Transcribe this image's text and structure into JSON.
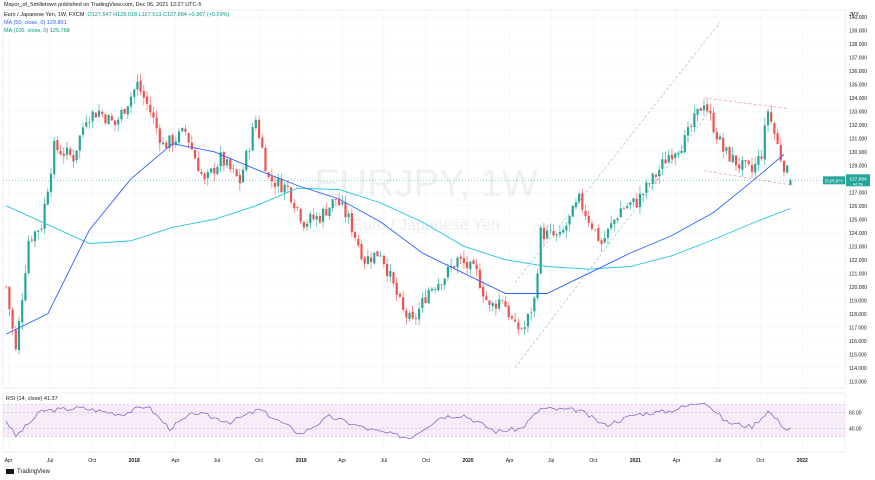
{
  "header": {
    "publish_line": "Mayor_of_Smilletown published on TradingView.com, Dec 06, 2021 12:27 UTC-5",
    "symbol_desc": "Euro / Japanese Yen, 1W, FXCM",
    "ohlc": "O127.547  H128.018  L127.513  C127.884  +0.367 (+0.29%)",
    "ma50": "MA (50, close, 0)  129.801",
    "ma100": "MA (100, close, 0)  125.768",
    "currency": "JPY"
  },
  "watermark": {
    "symbol": "EURJPY, 1W",
    "name": "Euro / Japanese Yen"
  },
  "price_label": {
    "symbol": "EURJPY",
    "value": "127.884",
    "countdown": "4d 5h"
  },
  "rsi": {
    "label": "RSI (14, close)  41.37"
  },
  "footer": {
    "brand": "TradingView"
  },
  "colors": {
    "up": "#26a69a",
    "down": "#ef5350",
    "ma50": "#2962ff",
    "ma100": "#26c6da",
    "rsi": "#7e57c2",
    "rsi_band": "#f3e5f5",
    "channel": "#9fd6c4",
    "wedge": "#f4a3a8"
  },
  "chart_data": {
    "type": "candlestick",
    "y_range": [
      112.5,
      140.5
    ],
    "y_ticks": [
      "113.000",
      "114.000",
      "115.000",
      "116.000",
      "117.000",
      "118.000",
      "119.000",
      "120.000",
      "121.000",
      "122.000",
      "123.000",
      "124.000",
      "125.000",
      "126.000",
      "127.000",
      "128.000",
      "129.000",
      "130.000",
      "131.000",
      "132.000",
      "133.000",
      "134.000",
      "135.000",
      "136.000",
      "137.000",
      "138.000",
      "139.000",
      "140.000"
    ],
    "x_labels": [
      "Apr",
      "Jul",
      "Oct",
      "2018",
      "Apr",
      "Jul",
      "Oct",
      "2019",
      "Apr",
      "Jul",
      "Oct",
      "2020",
      "Apr",
      "Jul",
      "Oct",
      "2021",
      "Apr",
      "Jul",
      "Oct",
      "2022"
    ],
    "close_path": [
      [
        "2017-03-27",
        120.0
      ],
      [
        "2017-04-17",
        115.2
      ],
      [
        "2017-05-15",
        123.5
      ],
      [
        "2017-06-12",
        124.6
      ],
      [
        "2017-07-10",
        130.3
      ],
      [
        "2017-08-21",
        129.6
      ],
      [
        "2017-09-18",
        132.6
      ],
      [
        "2017-10-16",
        133.0
      ],
      [
        "2017-11-20",
        132.0
      ],
      [
        "2018-01-08",
        135.0
      ],
      [
        "2018-02-05",
        133.0
      ],
      [
        "2018-03-05",
        130.5
      ],
      [
        "2018-03-26",
        130.8
      ],
      [
        "2018-04-23",
        131.5
      ],
      [
        "2018-06-04",
        127.7
      ],
      [
        "2018-07-09",
        129.5
      ],
      [
        "2018-08-20",
        127.8
      ],
      [
        "2018-09-24",
        132.4
      ],
      [
        "2018-10-22",
        128.0
      ],
      [
        "2018-12-03",
        127.3
      ],
      [
        "2019-01-07",
        124.8
      ],
      [
        "2019-02-11",
        125.2
      ],
      [
        "2019-03-18",
        126.5
      ],
      [
        "2019-04-15",
        125.0
      ],
      [
        "2019-05-20",
        122.0
      ],
      [
        "2019-06-24",
        122.6
      ],
      [
        "2019-08-12",
        118.1
      ],
      [
        "2019-09-02",
        117.3
      ],
      [
        "2019-10-07",
        119.8
      ],
      [
        "2019-11-11",
        120.8
      ],
      [
        "2019-12-09",
        122.0
      ],
      [
        "2020-01-20",
        121.0
      ],
      [
        "2020-02-17",
        118.4
      ],
      [
        "2020-03-16",
        119.2
      ],
      [
        "2020-04-13",
        116.9
      ],
      [
        "2020-05-04",
        117.0
      ],
      [
        "2020-05-25",
        119.0
      ],
      [
        "2020-06-08",
        124.0
      ],
      [
        "2020-07-20",
        123.6
      ],
      [
        "2020-08-31",
        126.4
      ],
      [
        "2020-10-19",
        123.2
      ],
      [
        "2020-11-30",
        125.8
      ],
      [
        "2021-01-04",
        126.3
      ],
      [
        "2021-02-15",
        128.3
      ],
      [
        "2021-03-15",
        129.8
      ],
      [
        "2021-04-19",
        130.8
      ],
      [
        "2021-05-31",
        133.8
      ],
      [
        "2021-06-14",
        132.5
      ],
      [
        "2021-07-12",
        130.1
      ],
      [
        "2021-08-16",
        129.0
      ],
      [
        "2021-09-13",
        128.5
      ],
      [
        "2021-10-04",
        129.9
      ],
      [
        "2021-10-18",
        133.1
      ],
      [
        "2021-11-15",
        129.6
      ],
      [
        "2021-12-06",
        127.88
      ]
    ],
    "ma50_path": [
      [
        "2017-03-27",
        116.5
      ],
      [
        "2017-06-26",
        118.0
      ],
      [
        "2017-09-25",
        124.2
      ],
      [
        "2017-12-25",
        128.0
      ],
      [
        "2018-03-26",
        130.6
      ],
      [
        "2018-06-25",
        130.0
      ],
      [
        "2018-09-24",
        128.7
      ],
      [
        "2018-12-24",
        127.5
      ],
      [
        "2019-03-25",
        126.5
      ],
      [
        "2019-06-24",
        124.8
      ],
      [
        "2019-09-23",
        122.5
      ],
      [
        "2019-12-23",
        121.0
      ],
      [
        "2020-03-23",
        119.5
      ],
      [
        "2020-06-22",
        119.5
      ],
      [
        "2020-09-21",
        121.0
      ],
      [
        "2020-12-21",
        122.5
      ],
      [
        "2021-03-22",
        123.8
      ],
      [
        "2021-06-21",
        125.5
      ],
      [
        "2021-09-20",
        128.0
      ],
      [
        "2021-11-22",
        129.8
      ]
    ],
    "ma100_path": [
      [
        "2017-03-27",
        126.0
      ],
      [
        "2017-06-26",
        124.6
      ],
      [
        "2017-09-25",
        123.2
      ],
      [
        "2017-12-25",
        123.4
      ],
      [
        "2018-03-26",
        124.4
      ],
      [
        "2018-06-25",
        125.0
      ],
      [
        "2018-09-24",
        126.0
      ],
      [
        "2018-12-24",
        127.3
      ],
      [
        "2019-03-25",
        127.2
      ],
      [
        "2019-06-24",
        126.2
      ],
      [
        "2019-09-23",
        124.8
      ],
      [
        "2019-12-23",
        123.0
      ],
      [
        "2020-03-23",
        122.0
      ],
      [
        "2020-06-22",
        121.5
      ],
      [
        "2020-09-21",
        121.3
      ],
      [
        "2020-12-21",
        121.5
      ],
      [
        "2021-03-22",
        122.3
      ],
      [
        "2021-06-21",
        123.5
      ],
      [
        "2021-09-20",
        124.8
      ],
      [
        "2021-12-06",
        125.8
      ]
    ],
    "rsi_path": [
      [
        "2017-03-27",
        50
      ],
      [
        "2017-04-17",
        30
      ],
      [
        "2017-06-12",
        62
      ],
      [
        "2017-09-04",
        66
      ],
      [
        "2017-12-04",
        58
      ],
      [
        "2018-01-29",
        69
      ],
      [
        "2018-03-19",
        40
      ],
      [
        "2018-05-14",
        60
      ],
      [
        "2018-07-30",
        48
      ],
      [
        "2018-10-01",
        64
      ],
      [
        "2018-12-31",
        33
      ],
      [
        "2019-03-04",
        55
      ],
      [
        "2019-06-03",
        38
      ],
      [
        "2019-08-26",
        28
      ],
      [
        "2019-11-04",
        55
      ],
      [
        "2019-12-23",
        57
      ],
      [
        "2020-03-02",
        36
      ],
      [
        "2020-04-27",
        40
      ],
      [
        "2020-06-08",
        65
      ],
      [
        "2020-08-31",
        63
      ],
      [
        "2020-10-26",
        44
      ],
      [
        "2021-01-04",
        58
      ],
      [
        "2021-03-15",
        62
      ],
      [
        "2021-05-31",
        75
      ],
      [
        "2021-07-19",
        48
      ],
      [
        "2021-09-13",
        42
      ],
      [
        "2021-10-18",
        62
      ],
      [
        "2021-11-29",
        38
      ],
      [
        "2021-12-06",
        41.37
      ]
    ],
    "rsi_levels": [
      40,
      60,
      70,
      30
    ],
    "rsi_ticks": [
      "60.00",
      "40.00"
    ]
  }
}
